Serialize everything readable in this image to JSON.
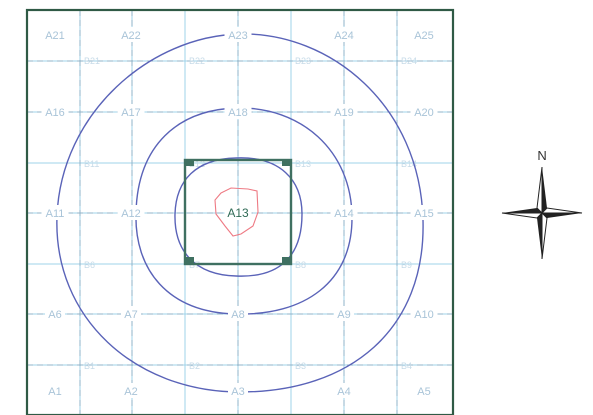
{
  "map": {
    "grid_cell_labels": [
      {
        "id": "A1",
        "col": 0,
        "row": 4
      },
      {
        "id": "A2",
        "col": 1,
        "row": 4
      },
      {
        "id": "A3",
        "col": 2,
        "row": 4
      },
      {
        "id": "A4",
        "col": 3,
        "row": 4
      },
      {
        "id": "A5",
        "col": 4,
        "row": 4
      },
      {
        "id": "A6",
        "col": 0,
        "row": 3
      },
      {
        "id": "A7",
        "col": 1,
        "row": 3
      },
      {
        "id": "A8",
        "col": 2,
        "row": 3
      },
      {
        "id": "A9",
        "col": 3,
        "row": 3
      },
      {
        "id": "A10",
        "col": 4,
        "row": 3
      },
      {
        "id": "A11",
        "col": 0,
        "row": 2
      },
      {
        "id": "A12",
        "col": 1,
        "row": 2
      },
      {
        "id": "A13",
        "col": 2,
        "row": 2
      },
      {
        "id": "A14",
        "col": 3,
        "row": 2
      },
      {
        "id": "A15",
        "col": 4,
        "row": 2
      },
      {
        "id": "A16",
        "col": 0,
        "row": 1
      },
      {
        "id": "A17",
        "col": 1,
        "row": 1
      },
      {
        "id": "A18",
        "col": 2,
        "row": 1
      },
      {
        "id": "A19",
        "col": 3,
        "row": 1
      },
      {
        "id": "A20",
        "col": 4,
        "row": 1
      },
      {
        "id": "A21",
        "col": 0,
        "row": 0
      },
      {
        "id": "A22",
        "col": 1,
        "row": 0
      },
      {
        "id": "A23",
        "col": 2,
        "row": 0
      },
      {
        "id": "A24",
        "col": 3,
        "row": 0
      },
      {
        "id": "A25",
        "col": 4,
        "row": 0
      }
    ],
    "highlighted_cell": "A13",
    "sub_points": [
      {
        "id": "B21",
        "col": 0,
        "row": 0
      },
      {
        "id": "B22",
        "col": 1,
        "row": 0
      },
      {
        "id": "B23",
        "col": 2,
        "row": 0
      },
      {
        "id": "B24",
        "col": 3,
        "row": 0
      },
      {
        "id": "B11",
        "col": 0,
        "row": 1
      },
      {
        "id": "B12",
        "col": 1,
        "row": 1
      },
      {
        "id": "B13",
        "col": 2,
        "row": 1
      },
      {
        "id": "B14",
        "col": 3,
        "row": 1
      },
      {
        "id": "B6",
        "col": 0,
        "row": 2
      },
      {
        "id": "B7",
        "col": 1,
        "row": 2
      },
      {
        "id": "B8",
        "col": 2,
        "row": 2
      },
      {
        "id": "B9",
        "col": 3,
        "row": 2
      },
      {
        "id": "B1",
        "col": 0,
        "row": 3
      },
      {
        "id": "B2",
        "col": 1,
        "row": 3
      },
      {
        "id": "B3",
        "col": 2,
        "row": 3
      },
      {
        "id": "B4",
        "col": 3,
        "row": 3
      }
    ],
    "compass": {
      "north_label": "N",
      "icon": "compass-rose-icon"
    },
    "colors": {
      "frame": "#2f5a45",
      "grid": "#9fd3ea",
      "grid_dashed": "#8fb3c9",
      "contour": "#5a63b8",
      "site_outline": "#ee7a84",
      "core_square": "#3f7061"
    }
  }
}
